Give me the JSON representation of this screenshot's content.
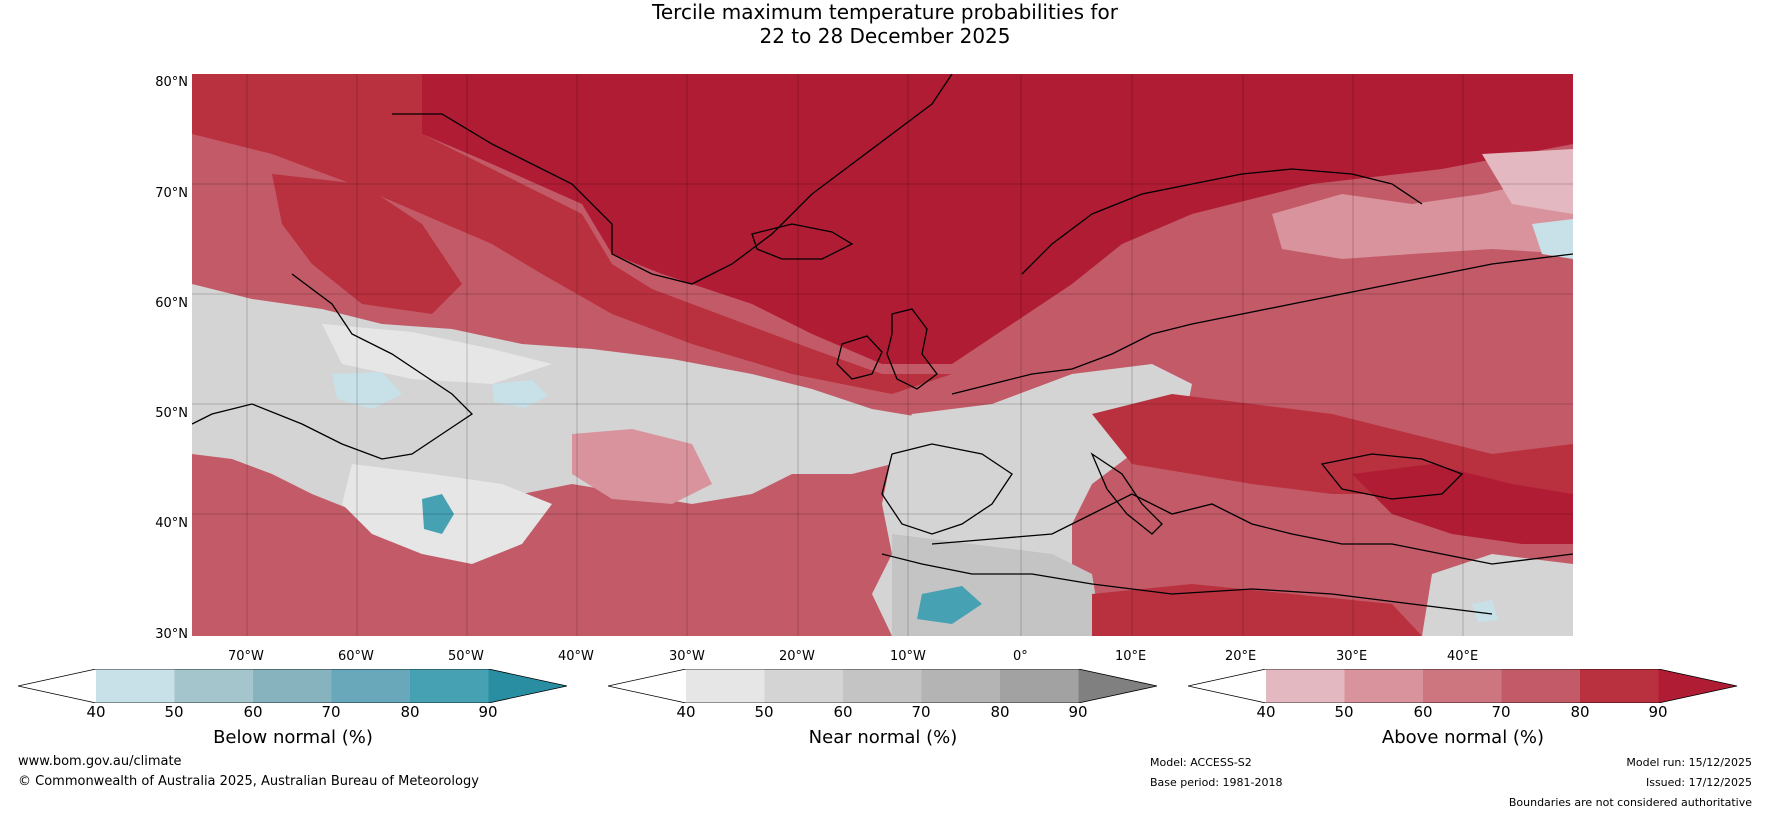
{
  "title": {
    "line1": "Tercile maximum temperature probabilities for",
    "line2": "22 to 28 December 2025"
  },
  "axes": {
    "lat_labels": [
      "80°N",
      "70°N",
      "60°N",
      "50°N",
      "40°N",
      "30°N"
    ],
    "lon_labels": [
      "70°W",
      "60°W",
      "50°W",
      "40°W",
      "30°W",
      "20°W",
      "10°W",
      "0°",
      "10°E",
      "20°E",
      "30°E",
      "40°E"
    ]
  },
  "colorbars": [
    {
      "name": "below",
      "title": "Below normal (%)",
      "ticks": [
        "40",
        "50",
        "60",
        "70",
        "80",
        "90"
      ],
      "colors": [
        "#ffffff",
        "#c8e0e7",
        "#a4c5cc",
        "#86b3bd",
        "#68a8ba",
        "#46a1b3",
        "#2a8ea3"
      ]
    },
    {
      "name": "near",
      "title": "Near normal (%)",
      "ticks": [
        "40",
        "50",
        "60",
        "70",
        "80",
        "90"
      ],
      "colors": [
        "#ffffff",
        "#e6e6e6",
        "#d4d4d4",
        "#c4c4c4",
        "#b4b4b4",
        "#a2a2a2",
        "#808080"
      ]
    },
    {
      "name": "above",
      "title": "Above normal (%)",
      "ticks": [
        "40",
        "50",
        "60",
        "70",
        "80",
        "90"
      ],
      "colors": [
        "#ffffff",
        "#e4b8c0",
        "#d8939c",
        "#cd7680",
        "#c35a67",
        "#b9313f",
        "#b01c34"
      ]
    }
  ],
  "footer": {
    "website": "www.bom.gov.au/climate",
    "copyright": "© Commonwealth of Australia 2025, Australian Bureau of Meteorology",
    "model": "Model: ACCESS-S2",
    "base_period": "Base period: 1981-2018",
    "model_run": "Model run: 15/12/2025",
    "issued": "Issued: 17/12/2025",
    "disclaimer": "Boundaries are not considered authoritative"
  },
  "map_colors": {
    "above_90": "#b01c34",
    "above_80": "#b9313f",
    "above_70": "#c35a67",
    "above_60": "#cd7680",
    "above_50": "#d8939c",
    "above_40": "#e4b8c0",
    "near_60": "#d4d4d4",
    "near_50": "#e6e6e6",
    "near_70": "#c4c4c4",
    "near_80": "#b4b4b4",
    "below_50": "#c8e0e7",
    "below_80": "#46a1b3",
    "white": "#ffffff"
  }
}
